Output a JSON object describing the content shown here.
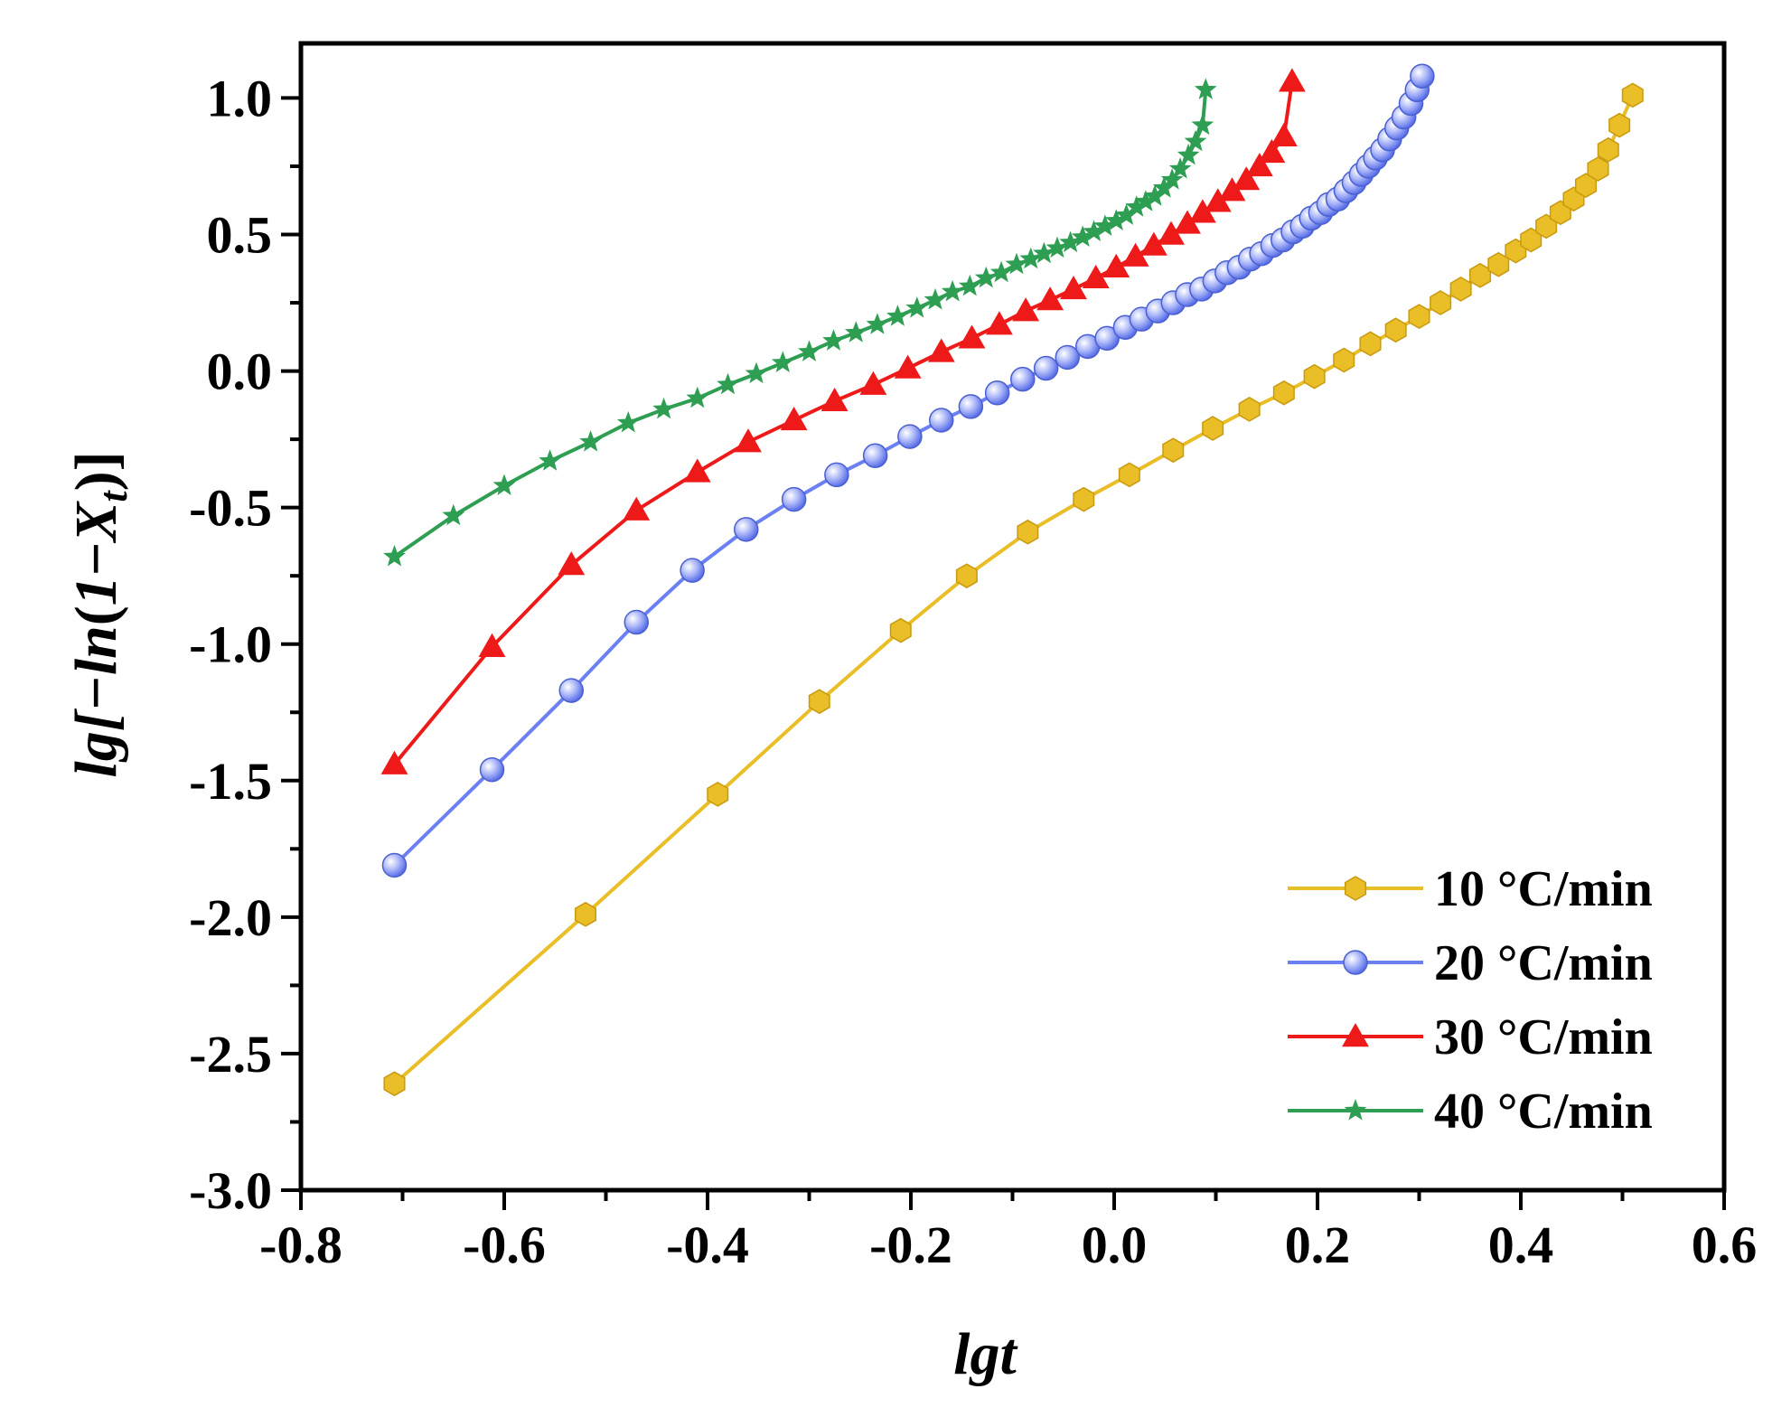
{
  "chart_data": {
    "type": "line",
    "title": "",
    "xlabel": "lgt",
    "ylabel": {
      "prefix": "lg[−",
      "ln": "ln",
      "open": "(",
      "one": "1",
      "minus": "−",
      "X": "X",
      "sub": "t",
      "close": ")]"
    },
    "xlim": [
      -0.8,
      0.6
    ],
    "ylim": [
      -3.0,
      1.2
    ],
    "xticks": [
      {
        "value": -0.8,
        "label": "-0.8"
      },
      {
        "value": -0.6,
        "label": "-0.6"
      },
      {
        "value": -0.4,
        "label": "-0.4"
      },
      {
        "value": -0.2,
        "label": "-0.2"
      },
      {
        "value": 0.0,
        "label": "0.0"
      },
      {
        "value": 0.2,
        "label": "0.2"
      },
      {
        "value": 0.4,
        "label": "0.4"
      },
      {
        "value": 0.6,
        "label": "0.6"
      }
    ],
    "yticks": [
      {
        "value": -3.0,
        "label": "-3.0"
      },
      {
        "value": -2.5,
        "label": "-2.5"
      },
      {
        "value": -2.0,
        "label": "-2.0"
      },
      {
        "value": -1.5,
        "label": "-1.5"
      },
      {
        "value": -1.0,
        "label": "-1.0"
      },
      {
        "value": -0.5,
        "label": "-0.5"
      },
      {
        "value": 0.0,
        "label": "0.0"
      },
      {
        "value": 0.5,
        "label": "0.5"
      },
      {
        "value": 1.0,
        "label": "1.0"
      }
    ],
    "legend_position": "bottom-right",
    "series": [
      {
        "name": "10 °C/min",
        "color": "#E9BE26",
        "marker": "hexagon",
        "x": [
          -0.708,
          -0.52,
          -0.39,
          -0.29,
          -0.21,
          -0.145,
          -0.085,
          -0.03,
          0.015,
          0.058,
          0.097,
          0.133,
          0.167,
          0.197,
          0.226,
          0.252,
          0.277,
          0.3,
          0.321,
          0.341,
          0.36,
          0.378,
          0.395,
          0.41,
          0.425,
          0.439,
          0.452,
          0.464,
          0.476,
          0.486,
          0.497,
          0.51
        ],
        "y": [
          -2.61,
          -1.99,
          -1.55,
          -1.21,
          -0.95,
          -0.75,
          -0.59,
          -0.47,
          -0.38,
          -0.29,
          -0.21,
          -0.14,
          -0.08,
          -0.02,
          0.04,
          0.1,
          0.15,
          0.2,
          0.25,
          0.3,
          0.35,
          0.39,
          0.44,
          0.48,
          0.53,
          0.58,
          0.63,
          0.68,
          0.74,
          0.81,
          0.9,
          1.01
        ]
      },
      {
        "name": "20 °C/min",
        "color": "#6B80F2",
        "marker": "sphere",
        "x": [
          -0.708,
          -0.612,
          -0.534,
          -0.47,
          -0.415,
          -0.362,
          -0.315,
          -0.273,
          -0.235,
          -0.201,
          -0.17,
          -0.141,
          -0.115,
          -0.09,
          -0.067,
          -0.046,
          -0.026,
          -0.007,
          0.011,
          0.027,
          0.043,
          0.058,
          0.072,
          0.086,
          0.099,
          0.111,
          0.123,
          0.134,
          0.145,
          0.156,
          0.166,
          0.176,
          0.185,
          0.194,
          0.203,
          0.211,
          0.22,
          0.228,
          0.236,
          0.243,
          0.25,
          0.257,
          0.264,
          0.271,
          0.278,
          0.285,
          0.292,
          0.298,
          0.303
        ],
        "y": [
          -1.81,
          -1.46,
          -1.17,
          -0.92,
          -0.73,
          -0.58,
          -0.47,
          -0.38,
          -0.31,
          -0.24,
          -0.18,
          -0.13,
          -0.08,
          -0.03,
          0.01,
          0.05,
          0.09,
          0.12,
          0.16,
          0.19,
          0.22,
          0.25,
          0.28,
          0.3,
          0.33,
          0.36,
          0.38,
          0.41,
          0.43,
          0.46,
          0.48,
          0.51,
          0.53,
          0.56,
          0.58,
          0.61,
          0.63,
          0.66,
          0.69,
          0.72,
          0.75,
          0.78,
          0.81,
          0.85,
          0.89,
          0.93,
          0.98,
          1.03,
          1.08
        ]
      },
      {
        "name": "30 °C/min",
        "color": "#EE1A1A",
        "marker": "triangle",
        "x": [
          -0.708,
          -0.612,
          -0.534,
          -0.47,
          -0.41,
          -0.36,
          -0.315,
          -0.275,
          -0.237,
          -0.203,
          -0.17,
          -0.14,
          -0.113,
          -0.087,
          -0.063,
          -0.04,
          -0.018,
          0.002,
          0.021,
          0.039,
          0.056,
          0.072,
          0.087,
          0.102,
          0.116,
          0.13,
          0.143,
          0.155,
          0.167,
          0.175
        ],
        "y": [
          -1.44,
          -1.01,
          -0.71,
          -0.51,
          -0.37,
          -0.26,
          -0.18,
          -0.11,
          -0.05,
          0.01,
          0.07,
          0.12,
          0.17,
          0.22,
          0.26,
          0.3,
          0.34,
          0.38,
          0.42,
          0.46,
          0.5,
          0.54,
          0.58,
          0.62,
          0.66,
          0.7,
          0.75,
          0.8,
          0.86,
          1.06
        ]
      },
      {
        "name": "40 °C/min",
        "color": "#2E9E52",
        "marker": "star",
        "x": [
          -0.708,
          -0.65,
          -0.6,
          -0.555,
          -0.515,
          -0.478,
          -0.443,
          -0.41,
          -0.38,
          -0.352,
          -0.326,
          -0.3,
          -0.276,
          -0.254,
          -0.233,
          -0.213,
          -0.194,
          -0.176,
          -0.159,
          -0.142,
          -0.126,
          -0.111,
          -0.096,
          -0.082,
          -0.069,
          -0.056,
          -0.043,
          -0.031,
          -0.02,
          -0.009,
          0.002,
          0.012,
          0.022,
          0.031,
          0.04,
          0.049,
          0.057,
          0.065,
          0.073,
          0.08,
          0.087,
          0.09
        ],
        "y": [
          -0.68,
          -0.53,
          -0.42,
          -0.33,
          -0.26,
          -0.19,
          -0.14,
          -0.1,
          -0.05,
          -0.01,
          0.03,
          0.07,
          0.11,
          0.14,
          0.17,
          0.2,
          0.23,
          0.26,
          0.29,
          0.31,
          0.34,
          0.36,
          0.39,
          0.41,
          0.43,
          0.45,
          0.47,
          0.49,
          0.51,
          0.53,
          0.55,
          0.57,
          0.6,
          0.62,
          0.64,
          0.67,
          0.7,
          0.74,
          0.79,
          0.84,
          0.9,
          1.03
        ]
      }
    ]
  }
}
